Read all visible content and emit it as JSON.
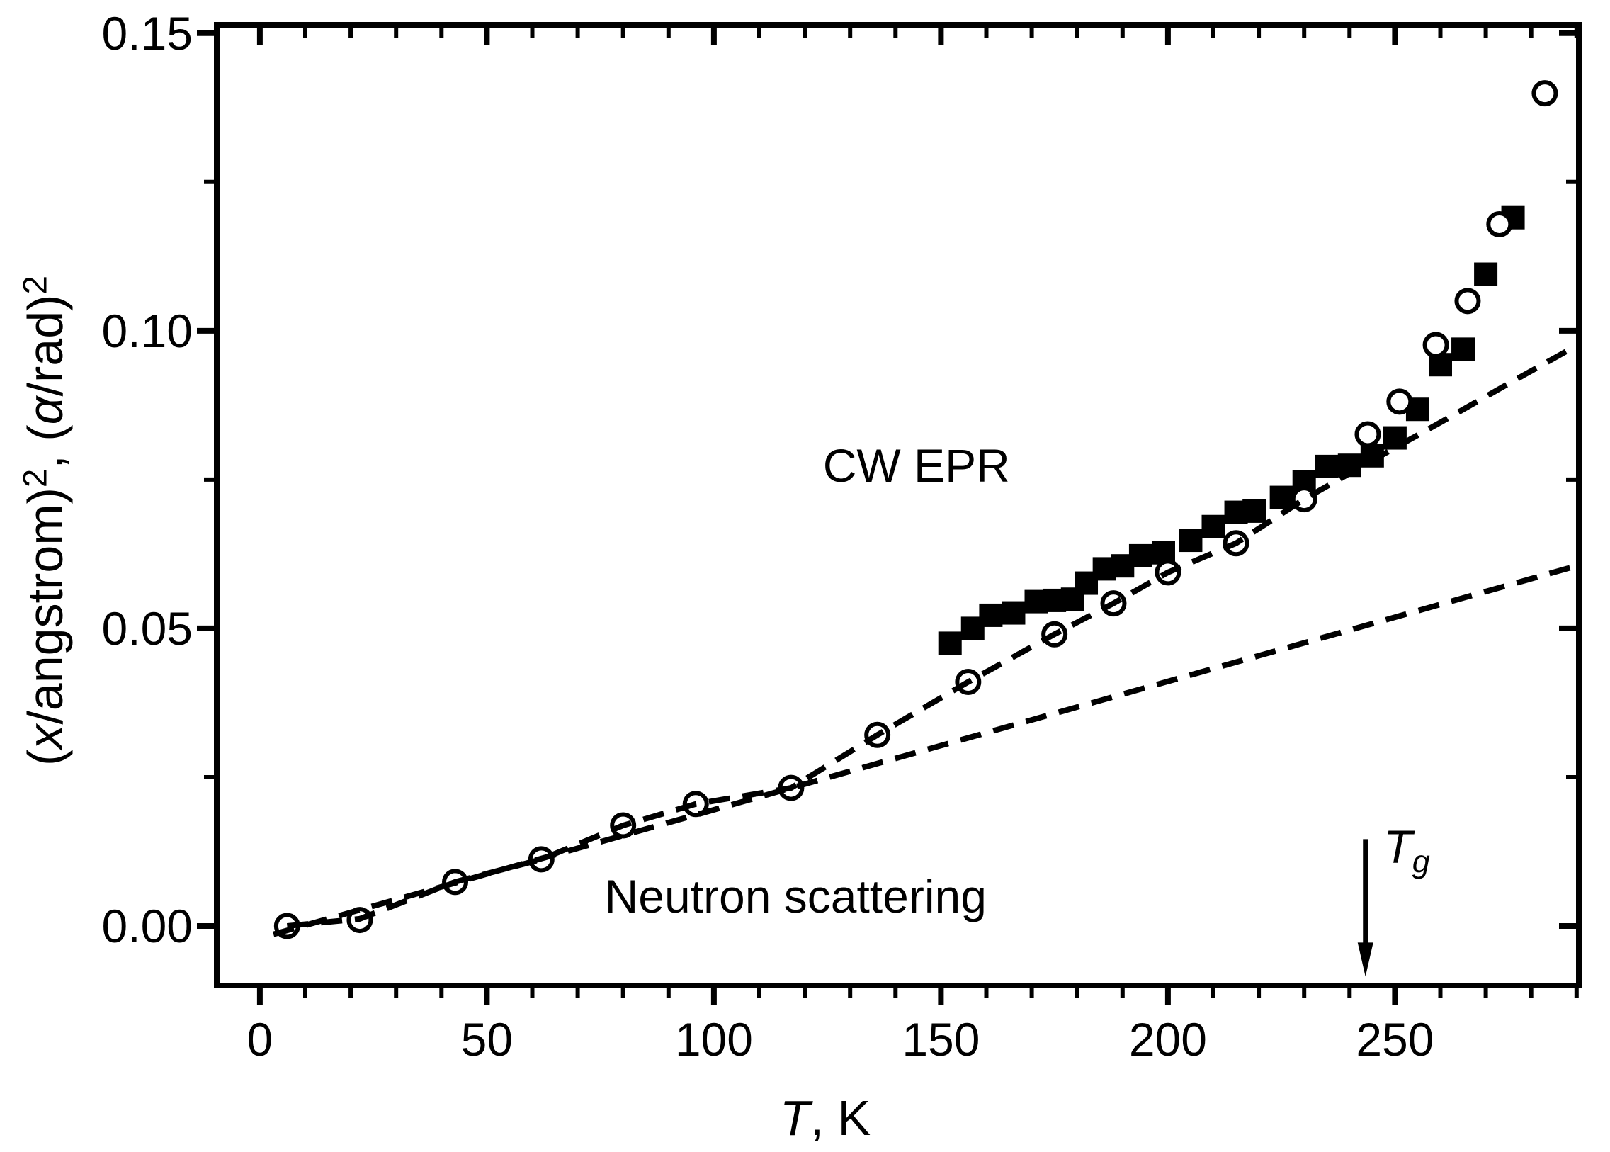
{
  "figure": {
    "background": "#ffffff",
    "axis_color": "#000000",
    "marker_color": "#000000"
  },
  "chart_data": {
    "type": "scatter",
    "title": "",
    "xlabel": "T, K",
    "ylabel": "(x/angstrom)^2, (alpha/rad)^2",
    "xlabel_segments": [
      {
        "t": "T",
        "i": 1
      },
      {
        "t": ", K",
        "i": 0
      }
    ],
    "ylabel_segments": [
      {
        "t": "(",
        "i": 0
      },
      {
        "t": "x",
        "i": 1
      },
      {
        "t": "/angstrom)",
        "i": 0
      },
      {
        "t": "2",
        "sup": 1
      },
      {
        "t": ", (",
        "i": 0
      },
      {
        "t": "α",
        "i": 1
      },
      {
        "t": "/rad)",
        "i": 0
      },
      {
        "t": "2",
        "sup": 1
      }
    ],
    "xlim": [
      -9.5,
      290.5
    ],
    "ylim": [
      -0.01,
      0.1514
    ],
    "grid": false,
    "legend": "none (in-plot text labels)",
    "x_major_ticks": [
      {
        "v": 0,
        "label": "0"
      },
      {
        "v": 50,
        "label": "50"
      },
      {
        "v": 100,
        "label": "100"
      },
      {
        "v": 150,
        "label": "150"
      },
      {
        "v": 200,
        "label": "200"
      },
      {
        "v": 250,
        "label": "250"
      }
    ],
    "x_minor_step": 10,
    "y_major_ticks": [
      {
        "v": 0.0,
        "label": "0.00"
      },
      {
        "v": 0.05,
        "label": "0.05"
      },
      {
        "v": 0.1,
        "label": "0.10"
      },
      {
        "v": 0.15,
        "label": "0.15"
      }
    ],
    "y_minor_ticks": [
      0.025,
      0.075,
      0.125
    ],
    "series": [
      {
        "name": "Neutron scattering",
        "marker": "circle-open",
        "points": [
          [
            6,
            0.0
          ],
          [
            22,
            0.001
          ],
          [
            43,
            0.0074
          ],
          [
            62,
            0.0112
          ],
          [
            80,
            0.0169
          ],
          [
            96,
            0.0205
          ],
          [
            117,
            0.0232
          ],
          [
            136,
            0.0321
          ],
          [
            156,
            0.041
          ],
          [
            175,
            0.049
          ],
          [
            188,
            0.0542
          ],
          [
            200,
            0.0594
          ],
          [
            215,
            0.0643
          ],
          [
            230,
            0.0717
          ],
          [
            244,
            0.0826
          ],
          [
            251,
            0.0881
          ],
          [
            259,
            0.0976
          ],
          [
            266,
            0.105
          ],
          [
            273,
            0.1179
          ],
          [
            283,
            0.1399
          ]
        ]
      },
      {
        "name": "CW EPR",
        "marker": "square-filled",
        "points": [
          [
            152,
            0.0475
          ],
          [
            157,
            0.05
          ],
          [
            161,
            0.0522
          ],
          [
            166,
            0.0526
          ],
          [
            171,
            0.0545
          ],
          [
            175,
            0.0547
          ],
          [
            179,
            0.0549
          ],
          [
            182,
            0.0576
          ],
          [
            186,
            0.06
          ],
          [
            190,
            0.0605
          ],
          [
            194,
            0.0622
          ],
          [
            199,
            0.0627
          ],
          [
            205,
            0.0648
          ],
          [
            210,
            0.0671
          ],
          [
            215,
            0.0695
          ],
          [
            219,
            0.0697
          ],
          [
            225,
            0.072
          ],
          [
            230,
            0.0746
          ],
          [
            235,
            0.0772
          ],
          [
            240,
            0.0774
          ],
          [
            245,
            0.079
          ],
          [
            250,
            0.082
          ],
          [
            255,
            0.0868
          ],
          [
            260,
            0.0943
          ],
          [
            265,
            0.0969
          ],
          [
            270,
            0.1095
          ],
          [
            276,
            0.119
          ]
        ]
      }
    ],
    "lines": [
      {
        "name": "anharmonic-fit-dashed",
        "style": "dashed",
        "points": [
          [
            6,
            0.0
          ],
          [
            22,
            0.0012
          ],
          [
            43,
            0.0074
          ],
          [
            62,
            0.0112
          ],
          [
            80,
            0.0169
          ],
          [
            96,
            0.0205
          ],
          [
            117,
            0.0232
          ],
          [
            136,
            0.0321
          ],
          [
            156,
            0.041
          ],
          [
            175,
            0.049
          ],
          [
            188,
            0.0542
          ],
          [
            200,
            0.0594
          ],
          [
            215,
            0.0643
          ],
          [
            230,
            0.0717
          ],
          [
            245,
            0.0782
          ],
          [
            260,
            0.0846
          ],
          [
            275,
            0.0911
          ],
          [
            290,
            0.0975
          ]
        ]
      },
      {
        "name": "harmonic-extrapolation-dashed",
        "style": "dashed",
        "points": [
          [
            3,
            -0.0014
          ],
          [
            290,
            0.0605
          ]
        ]
      }
    ],
    "annotations": [
      {
        "name": "cw-epr-label",
        "anchor": "middle",
        "x": 144.6,
        "y": 0.0746,
        "segments": [
          {
            "t": "CW EPR",
            "i": 0
          }
        ]
      },
      {
        "name": "neutron-scattering-label",
        "anchor": "middle",
        "x": 118,
        "y": 0.00226,
        "segments": [
          {
            "t": "Neutron scattering",
            "i": 0
          }
        ]
      },
      {
        "name": "tg-label",
        "anchor": "start",
        "x": 247.5,
        "y": 0.0106,
        "segments": [
          {
            "t": "T",
            "i": 1
          },
          {
            "t": "g",
            "i": 1,
            "sub": 1
          }
        ]
      }
    ],
    "arrow": {
      "name": "tg-arrow",
      "x": 243.5,
      "v_top": 0.0146,
      "v_tip": -0.0085,
      "label": "Tg position ~243 K"
    }
  }
}
